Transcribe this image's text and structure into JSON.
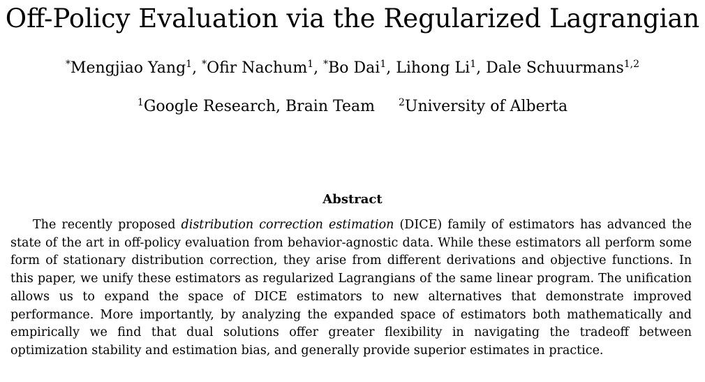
{
  "paper": {
    "title": "Off-Policy Evaluation via the Regularized Lagrangian",
    "authors": [
      {
        "prefix": "*",
        "name": "Mengjiao Yang",
        "sup": "1",
        "sep": ", "
      },
      {
        "prefix": "*",
        "name": "Ofir Nachum",
        "sup": "1",
        "sep": ", "
      },
      {
        "prefix": "*",
        "name": "Bo Dai",
        "sup": "1",
        "sep": ", "
      },
      {
        "prefix": "",
        "name": "Lihong Li",
        "sup": "1",
        "sep": ", "
      },
      {
        "prefix": "",
        "name": "Dale Schuurmans",
        "sup": "1,2",
        "sep": ""
      }
    ],
    "affiliations": [
      {
        "sup": "1",
        "name": "Google Research, Brain Team"
      },
      {
        "sup": "2",
        "name": "University of Alberta"
      }
    ]
  },
  "abstract": {
    "heading": "Abstract",
    "lead": "The recently proposed ",
    "emphasis": "distribution correction estimation",
    "body": " (DICE) family of estimators has advanced the state of the art in off-policy evaluation from behavior-agnostic data. While these estimators all perform some form of stationary distribution correction, they arise from different derivations and objective functions. In this paper, we unify these estimators as regularized Lagrangians of the same linear program. The unification allows us to expand the space of DICE estimators to new alternatives that demonstrate improved performance. More importantly, by analyzing the expanded space of estimators both mathematically and empirically we find that dual solutions offer greater flexibility in navigating the tradeoff between optimization stability and estimation bias, and generally provide superior estimates in practice."
  }
}
